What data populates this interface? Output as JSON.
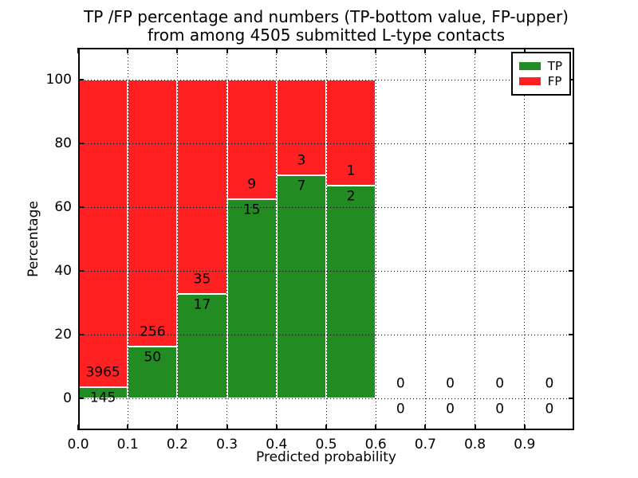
{
  "chart_data": {
    "type": "bar",
    "stacked": true,
    "normalized": "percent_of_bin_total",
    "title_line1": "TP /FP percentage and numbers (TP-bottom value, FP-upper)",
    "title_line2": "from among 4505 submitted L-type contacts",
    "total_contacts": 4505,
    "xlabel": "Predicted probability",
    "ylabel": "Percentage",
    "xlim": [
      0.0,
      1.0
    ],
    "ylim": [
      -10,
      110
    ],
    "grid": "dotted",
    "legend_position": "upper right",
    "bin_edges": [
      0.0,
      0.1,
      0.2,
      0.3,
      0.4,
      0.5,
      0.6,
      0.7,
      0.8,
      0.9,
      1.0
    ],
    "categories": [
      "0.0-0.1",
      "0.1-0.2",
      "0.2-0.3",
      "0.3-0.4",
      "0.4-0.5",
      "0.5-0.6",
      "0.6-0.7",
      "0.7-0.8",
      "0.8-0.9",
      "0.9-1.0"
    ],
    "x_tick_values": [
      0.0,
      0.1,
      0.2,
      0.3,
      0.4,
      0.5,
      0.6,
      0.7,
      0.8,
      0.9
    ],
    "x_tick_labels": [
      "0.0",
      "0.1",
      "0.2",
      "0.3",
      "0.4",
      "0.5",
      "0.6",
      "0.7",
      "0.8",
      "0.9"
    ],
    "y_tick_values": [
      0,
      20,
      40,
      60,
      80,
      100
    ],
    "y_tick_labels": [
      "0",
      "20",
      "40",
      "60",
      "80",
      "100"
    ],
    "series": [
      {
        "name": "TP",
        "color": "#228b22",
        "position": "bottom",
        "counts": [
          145,
          50,
          17,
          15,
          7,
          2,
          0,
          0,
          0,
          0
        ]
      },
      {
        "name": "FP",
        "color": "#ff2121",
        "position": "top",
        "counts": [
          3965,
          256,
          35,
          9,
          3,
          1,
          0,
          0,
          0,
          0
        ]
      }
    ],
    "tp_percent_per_bin": [
      3.53,
      16.34,
      32.69,
      62.5,
      70.0,
      66.67,
      0,
      0,
      0,
      0
    ],
    "colors": {
      "tp": "#228b22",
      "fp": "#ff2121",
      "background": "#ffffff",
      "axis": "#000000",
      "bar_edge": "#ffffff"
    }
  }
}
